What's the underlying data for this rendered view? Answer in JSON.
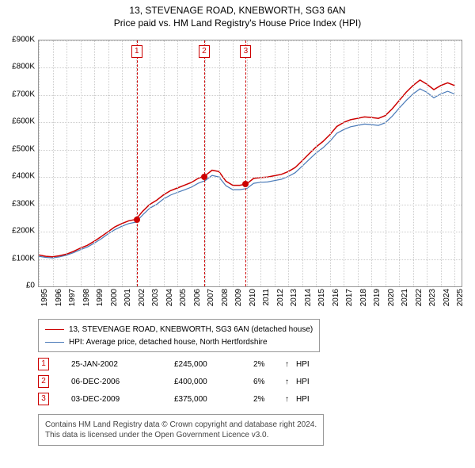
{
  "title": {
    "main": "13, STEVENAGE ROAD, KNEBWORTH, SG3 6AN",
    "sub": "Price paid vs. HM Land Registry's House Price Index (HPI)"
  },
  "chart": {
    "type": "line",
    "background_color": "#ffffff",
    "grid_color": "#cccccc",
    "border_color": "#999999",
    "xlim": [
      1995,
      2025.5
    ],
    "ylim": [
      0,
      900
    ],
    "ytick_step": 100,
    "ytick_prefix": "£",
    "ytick_suffix": "K",
    "yticks": [
      "£0",
      "£100K",
      "£200K",
      "£300K",
      "£400K",
      "£500K",
      "£600K",
      "£700K",
      "£800K",
      "£900K"
    ],
    "xticks": [
      1995,
      1996,
      1997,
      1998,
      1999,
      2000,
      2001,
      2002,
      2003,
      2004,
      2005,
      2006,
      2007,
      2008,
      2009,
      2010,
      2011,
      2012,
      2013,
      2014,
      2015,
      2016,
      2017,
      2018,
      2019,
      2020,
      2021,
      2022,
      2023,
      2024,
      2025
    ],
    "series": [
      {
        "name": "13, STEVENAGE ROAD, KNEBWORTH, SG3 6AN (detached house)",
        "color": "#cc0000",
        "line_width": 1.5,
        "points": [
          [
            1995,
            115
          ],
          [
            1995.5,
            110
          ],
          [
            1996,
            108
          ],
          [
            1996.5,
            112
          ],
          [
            1997,
            118
          ],
          [
            1997.5,
            128
          ],
          [
            1998,
            140
          ],
          [
            1998.5,
            150
          ],
          [
            1999,
            165
          ],
          [
            1999.5,
            182
          ],
          [
            2000,
            200
          ],
          [
            2000.5,
            218
          ],
          [
            2001,
            230
          ],
          [
            2001.5,
            240
          ],
          [
            2002,
            245
          ],
          [
            2002.5,
            275
          ],
          [
            2003,
            300
          ],
          [
            2003.5,
            315
          ],
          [
            2004,
            335
          ],
          [
            2004.5,
            350
          ],
          [
            2005,
            360
          ],
          [
            2005.5,
            370
          ],
          [
            2006,
            380
          ],
          [
            2006.5,
            395
          ],
          [
            2007,
            405
          ],
          [
            2007.5,
            425
          ],
          [
            2008,
            420
          ],
          [
            2008.5,
            385
          ],
          [
            2009,
            370
          ],
          [
            2009.5,
            370
          ],
          [
            2010,
            375
          ],
          [
            2010.5,
            395
          ],
          [
            2011,
            398
          ],
          [
            2011.5,
            400
          ],
          [
            2012,
            405
          ],
          [
            2012.5,
            410
          ],
          [
            2013,
            420
          ],
          [
            2013.5,
            435
          ],
          [
            2014,
            460
          ],
          [
            2014.5,
            485
          ],
          [
            2015,
            510
          ],
          [
            2015.5,
            530
          ],
          [
            2016,
            555
          ],
          [
            2016.5,
            585
          ],
          [
            2017,
            600
          ],
          [
            2017.5,
            610
          ],
          [
            2018,
            615
          ],
          [
            2018.5,
            620
          ],
          [
            2019,
            618
          ],
          [
            2019.5,
            615
          ],
          [
            2020,
            625
          ],
          [
            2020.5,
            650
          ],
          [
            2021,
            680
          ],
          [
            2021.5,
            710
          ],
          [
            2022,
            735
          ],
          [
            2022.5,
            755
          ],
          [
            2023,
            740
          ],
          [
            2023.5,
            720
          ],
          [
            2024,
            735
          ],
          [
            2024.5,
            745
          ],
          [
            2025,
            735
          ]
        ]
      },
      {
        "name": "HPI: Average price, detached house, North Hertfordshire",
        "color": "#4a7ab8",
        "line_width": 1.2,
        "points": [
          [
            1995,
            110
          ],
          [
            1995.5,
            106
          ],
          [
            1996,
            104
          ],
          [
            1996.5,
            108
          ],
          [
            1997,
            114
          ],
          [
            1997.5,
            123
          ],
          [
            1998,
            134
          ],
          [
            1998.5,
            144
          ],
          [
            1999,
            158
          ],
          [
            1999.5,
            174
          ],
          [
            2000,
            192
          ],
          [
            2000.5,
            208
          ],
          [
            2001,
            220
          ],
          [
            2001.5,
            230
          ],
          [
            2002,
            235
          ],
          [
            2002.5,
            262
          ],
          [
            2003,
            286
          ],
          [
            2003.5,
            300
          ],
          [
            2004,
            320
          ],
          [
            2004.5,
            334
          ],
          [
            2005,
            344
          ],
          [
            2005.5,
            353
          ],
          [
            2006,
            363
          ],
          [
            2006.5,
            377
          ],
          [
            2007,
            387
          ],
          [
            2007.5,
            406
          ],
          [
            2008,
            400
          ],
          [
            2008.5,
            368
          ],
          [
            2009,
            354
          ],
          [
            2009.5,
            354
          ],
          [
            2010,
            358
          ],
          [
            2010.5,
            377
          ],
          [
            2011,
            381
          ],
          [
            2011.5,
            382
          ],
          [
            2012,
            387
          ],
          [
            2012.5,
            392
          ],
          [
            2013,
            402
          ],
          [
            2013.5,
            416
          ],
          [
            2014,
            440
          ],
          [
            2014.5,
            464
          ],
          [
            2015,
            488
          ],
          [
            2015.5,
            507
          ],
          [
            2016,
            531
          ],
          [
            2016.5,
            560
          ],
          [
            2017,
            574
          ],
          [
            2017.5,
            584
          ],
          [
            2018,
            589
          ],
          [
            2018.5,
            594
          ],
          [
            2019,
            592
          ],
          [
            2019.5,
            589
          ],
          [
            2020,
            599
          ],
          [
            2020.5,
            623
          ],
          [
            2021,
            652
          ],
          [
            2021.5,
            680
          ],
          [
            2022,
            704
          ],
          [
            2022.5,
            723
          ],
          [
            2023,
            710
          ],
          [
            2023.5,
            690
          ],
          [
            2024,
            704
          ],
          [
            2024.5,
            714
          ],
          [
            2025,
            704
          ]
        ]
      }
    ],
    "markers": [
      {
        "n": 1,
        "x": 2002.07,
        "y": 245
      },
      {
        "n": 2,
        "x": 2006.93,
        "y": 400
      },
      {
        "n": 3,
        "x": 2009.93,
        "y": 375
      }
    ],
    "marker_color": "#cc0000",
    "marker_box_bg": "#ffffff"
  },
  "legend": {
    "border_color": "#999999",
    "items": [
      {
        "color": "#cc0000",
        "width": 1.5,
        "label": "13, STEVENAGE ROAD, KNEBWORTH, SG3 6AN (detached house)"
      },
      {
        "color": "#4a7ab8",
        "width": 1.2,
        "label": "HPI: Average price, detached house, North Hertfordshire"
      }
    ]
  },
  "events": [
    {
      "n": "1",
      "date": "25-JAN-2002",
      "price": "£245,000",
      "pct": "2%",
      "arrow": "↑",
      "label": "HPI"
    },
    {
      "n": "2",
      "date": "06-DEC-2006",
      "price": "£400,000",
      "pct": "6%",
      "arrow": "↑",
      "label": "HPI"
    },
    {
      "n": "3",
      "date": "03-DEC-2009",
      "price": "£375,000",
      "pct": "2%",
      "arrow": "↑",
      "label": "HPI"
    }
  ],
  "footer": {
    "line1": "Contains HM Land Registry data © Crown copyright and database right 2024.",
    "line2": "This data is licensed under the Open Government Licence v3.0."
  }
}
